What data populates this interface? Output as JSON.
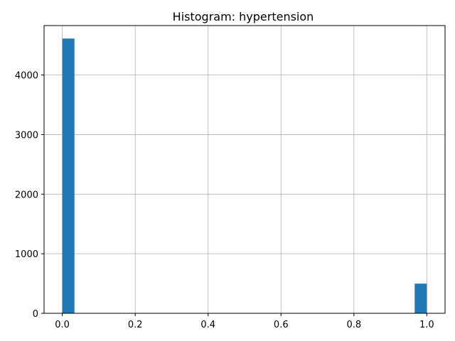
{
  "chart_data": {
    "type": "bar",
    "title": "Histogram: hypertension",
    "xlabel": "",
    "ylabel": "",
    "xlim": [
      -0.05,
      1.05
    ],
    "ylim": [
      0,
      4830
    ],
    "grid": true,
    "color": "#1f77b4",
    "bin_width": 0.0333,
    "bins": [
      {
        "x0": 0.0,
        "x1": 0.0333,
        "count": 4612
      },
      {
        "x0": 0.9667,
        "x1": 1.0,
        "count": 498
      }
    ],
    "xticks": [
      {
        "value": 0.0,
        "label": "0.0"
      },
      {
        "value": 0.2,
        "label": "0.2"
      },
      {
        "value": 0.4,
        "label": "0.4"
      },
      {
        "value": 0.6,
        "label": "0.6"
      },
      {
        "value": 0.8,
        "label": "0.8"
      },
      {
        "value": 1.0,
        "label": "1.0"
      }
    ],
    "yticks": [
      {
        "value": 0,
        "label": "0"
      },
      {
        "value": 1000,
        "label": "1000"
      },
      {
        "value": 2000,
        "label": "2000"
      },
      {
        "value": 3000,
        "label": "3000"
      },
      {
        "value": 4000,
        "label": "4000"
      }
    ]
  }
}
